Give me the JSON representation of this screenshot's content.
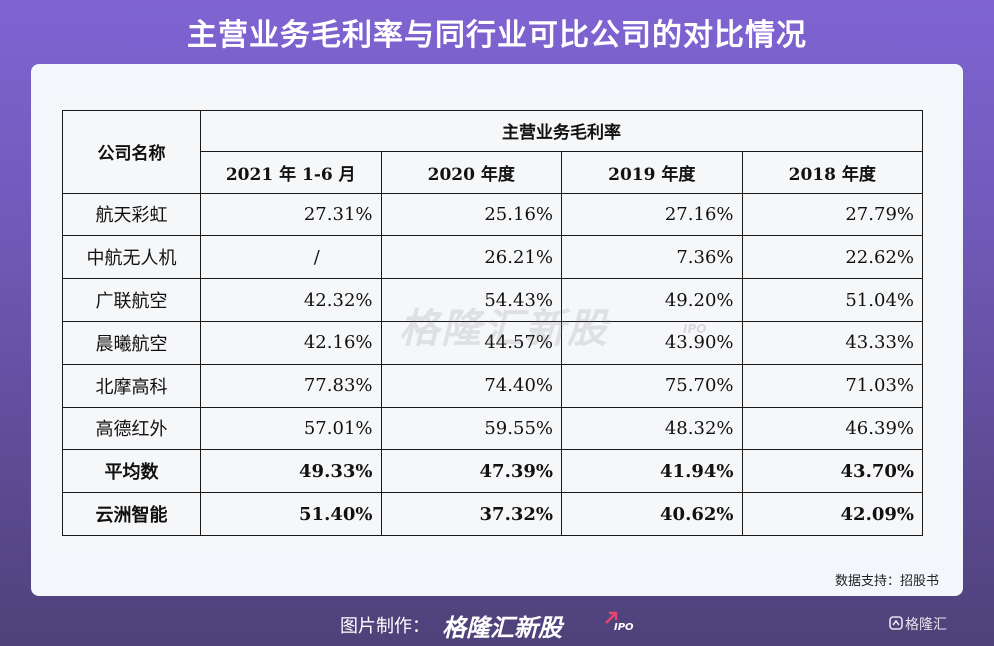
{
  "title": "主营业务毛利率与同行业可比公司的对比情况",
  "table": {
    "name_header": "公司名称",
    "group_header": "主营业务毛利率",
    "period_headers": [
      "2021 年 1-6 月",
      "2020 年度",
      "2019 年度",
      "2018 年度"
    ],
    "rows": [
      {
        "name": "航天彩虹",
        "values": [
          "27.31%",
          "25.16%",
          "27.16%",
          "27.79%"
        ]
      },
      {
        "name": "中航无人机",
        "values": [
          "/",
          "26.21%",
          "7.36%",
          "22.62%"
        ]
      },
      {
        "name": "广联航空",
        "values": [
          "42.32%",
          "54.43%",
          "49.20%",
          "51.04%"
        ]
      },
      {
        "name": "晨曦航空",
        "values": [
          "42.16%",
          "44.57%",
          "43.90%",
          "43.33%"
        ]
      },
      {
        "name": "北摩高科",
        "values": [
          "77.83%",
          "74.40%",
          "75.70%",
          "71.03%"
        ]
      },
      {
        "name": "高德红外",
        "values": [
          "57.01%",
          "59.55%",
          "48.32%",
          "46.39%"
        ]
      },
      {
        "name": "平均数",
        "values": [
          "49.33%",
          "47.39%",
          "41.94%",
          "43.70%"
        ]
      },
      {
        "name": "云洲智能",
        "values": [
          "51.40%",
          "37.32%",
          "40.62%",
          "42.09%"
        ]
      }
    ]
  },
  "watermark": {
    "brand": "格隆汇新股",
    "suffix": "IPO"
  },
  "source": "数据支持：招股书",
  "footer": {
    "label": "图片制作：",
    "brand": "格隆汇新股",
    "suffix": "IPO",
    "corner_logo": "格隆汇",
    "icons": {
      "brand_arrow": "arrow-up-right-icon",
      "corner": "gelonghui-logo-icon"
    }
  },
  "colors": {
    "background_top": "#7f64d3",
    "background_bottom": "#4e4279",
    "card": "#f3f7fc",
    "accent": "#e8446f"
  }
}
